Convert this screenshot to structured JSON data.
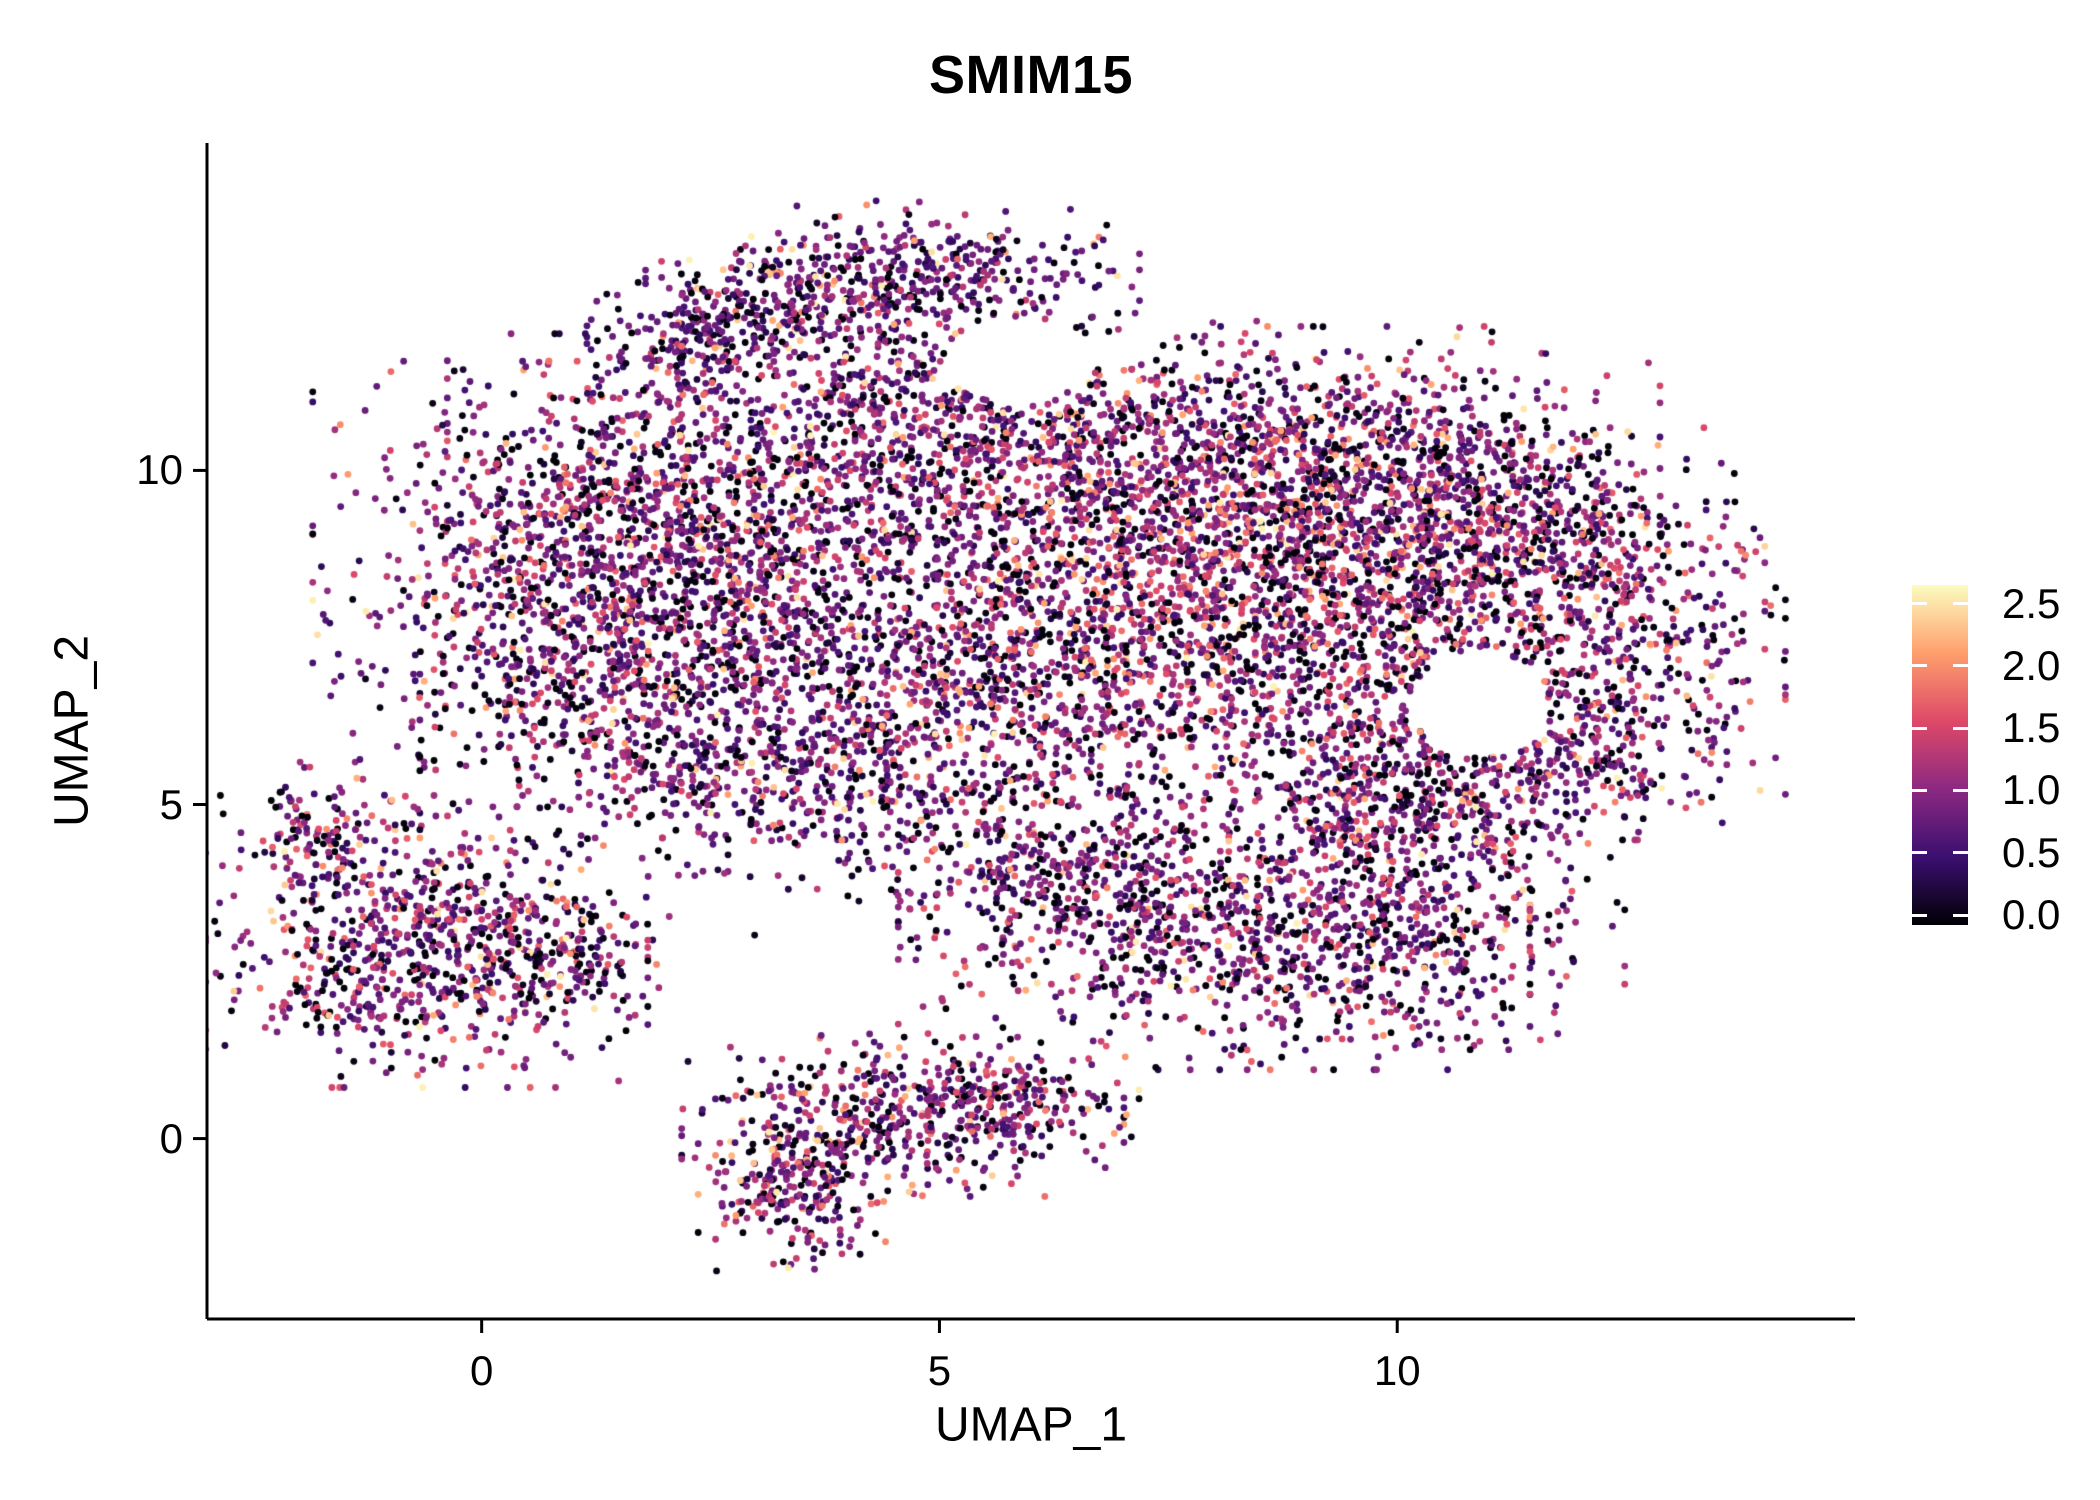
{
  "title": "SMIM15",
  "chart_data": {
    "type": "scatter",
    "title": "SMIM15",
    "subtitle": "",
    "xlabel": "UMAP_1",
    "ylabel": "UMAP_2",
    "x_ticks": [
      {
        "label": "0",
        "value": 0
      },
      {
        "label": "5",
        "value": 5
      },
      {
        "label": "10",
        "value": 10
      }
    ],
    "y_ticks": [
      {
        "label": "0",
        "value": 0
      },
      {
        "label": "5",
        "value": 5
      },
      {
        "label": "10",
        "value": 10
      }
    ],
    "xlim": [
      -3.0,
      15.0
    ],
    "ylim": [
      -2.7,
      14.9
    ],
    "grid": false,
    "background": "#ffffff",
    "axis_color": "#000000",
    "text_color": "#000000",
    "point_radius_px": 3.4,
    "seed": 42,
    "legend": {
      "position": "right",
      "title": "",
      "ticks": [
        {
          "label": "2.5",
          "value": 2.5
        },
        {
          "label": "2.0",
          "value": 2.0
        },
        {
          "label": "1.5",
          "value": 1.5
        },
        {
          "label": "1.0",
          "value": 1.0
        },
        {
          "label": "0.5",
          "value": 0.5
        },
        {
          "label": "0.0",
          "value": 0.0
        }
      ],
      "color_domain": [
        0,
        2.65
      ],
      "bar_domain": [
        -0.08,
        2.65
      ],
      "colormap_name": "magma",
      "colormap_stops": [
        {
          "frac": 0.0,
          "color": "#000004"
        },
        {
          "frac": 0.2,
          "color": "#3B0F70"
        },
        {
          "frac": 0.4,
          "color": "#8C2981"
        },
        {
          "frac": 0.6,
          "color": "#DE4968"
        },
        {
          "frac": 0.8,
          "color": "#FE9F6D"
        },
        {
          "frac": 1.0,
          "color": "#FCFDBF"
        }
      ]
    },
    "value_distribution": {
      "p_zero": 0.2,
      "p_high": 0.08,
      "base_scale": 0.95,
      "high_min": 1.7,
      "high_max": 2.6,
      "max_value": 2.6
    },
    "clusters": [
      {
        "cx": 0.8,
        "cy": 8.3,
        "sx": 1.15,
        "sy": 1.45,
        "n": 850,
        "vbias": 1.0
      },
      {
        "cx": 2.5,
        "cy": 9.4,
        "sx": 1.25,
        "sy": 1.15,
        "n": 850,
        "vbias": 1.0
      },
      {
        "cx": 2.2,
        "cy": 6.8,
        "sx": 1.25,
        "sy": 1.0,
        "n": 650,
        "vbias": 0.95
      },
      {
        "cx": 2.3,
        "cy": 12.0,
        "sx": 0.5,
        "sy": 0.4,
        "n": 150,
        "vbias": 0.85
      },
      {
        "cx": 3.4,
        "cy": 12.45,
        "sx": 0.7,
        "sy": 0.45,
        "n": 260,
        "vbias": 0.85
      },
      {
        "cx": 5.0,
        "cy": 13.0,
        "sx": 0.95,
        "sy": 0.45,
        "n": 320,
        "vbias": 0.85
      },
      {
        "cx": 4.6,
        "cy": 10.9,
        "sx": 1.05,
        "sy": 0.85,
        "n": 420,
        "vbias": 0.95
      },
      {
        "cx": 5.0,
        "cy": 8.0,
        "sx": 1.5,
        "sy": 1.5,
        "n": 900,
        "vbias": 1.0
      },
      {
        "cx": 6.5,
        "cy": 6.3,
        "sx": 1.5,
        "sy": 0.9,
        "n": 600,
        "vbias": 1.0
      },
      {
        "cx": 7.8,
        "cy": 8.7,
        "sx": 1.35,
        "sy": 1.15,
        "n": 1100,
        "vbias": 1.25
      },
      {
        "cx": 6.8,
        "cy": 10.4,
        "sx": 1.15,
        "sy": 0.85,
        "n": 480,
        "vbias": 1.0
      },
      {
        "cx": 9.3,
        "cy": 10.2,
        "sx": 1.25,
        "sy": 0.85,
        "n": 550,
        "vbias": 1.0
      },
      {
        "cx": 10.8,
        "cy": 10.0,
        "sx": 0.9,
        "sy": 0.7,
        "n": 330,
        "vbias": 1.0
      },
      {
        "cx": 9.8,
        "cy": 7.6,
        "sx": 1.2,
        "sy": 1.3,
        "n": 780,
        "vbias": 1.1
      },
      {
        "cx": 11.6,
        "cy": 8.8,
        "sx": 1.05,
        "sy": 0.8,
        "n": 480,
        "vbias": 1.0
      },
      {
        "cx": 12.4,
        "cy": 7.0,
        "sx": 0.8,
        "sy": 1.1,
        "n": 430,
        "vbias": 1.0
      },
      {
        "cx": 11.3,
        "cy": 5.6,
        "sx": 1.0,
        "sy": 0.6,
        "n": 280,
        "vbias": 0.95
      },
      {
        "cx": -0.6,
        "cy": 2.95,
        "sx": 1.05,
        "sy": 0.95,
        "n": 800,
        "vbias": 1.0
      },
      {
        "cx": -1.75,
        "cy": 4.6,
        "sx": 0.35,
        "sy": 0.45,
        "n": 110,
        "vbias": 1.0
      },
      {
        "cx": 0.9,
        "cy": 2.55,
        "sx": 0.45,
        "sy": 0.45,
        "n": 120,
        "vbias": 1.0
      },
      {
        "cx": 4.6,
        "cy": 0.4,
        "sx": 1.05,
        "sy": 0.55,
        "n": 420,
        "vbias": 1.0
      },
      {
        "cx": 3.4,
        "cy": -0.6,
        "sx": 0.45,
        "sy": 0.6,
        "n": 270,
        "vbias": 1.0
      },
      {
        "cx": 5.8,
        "cy": 0.6,
        "sx": 0.6,
        "sy": 0.4,
        "n": 120,
        "vbias": 0.95
      },
      {
        "cx": 8.0,
        "cy": 3.1,
        "sx": 1.5,
        "sy": 0.9,
        "n": 800,
        "vbias": 1.0
      },
      {
        "cx": 6.3,
        "cy": 3.9,
        "sx": 1.0,
        "sy": 0.5,
        "n": 240,
        "vbias": 0.95
      },
      {
        "cx": 10.3,
        "cy": 3.4,
        "sx": 0.95,
        "sy": 0.9,
        "n": 430,
        "vbias": 1.0
      },
      {
        "cx": 10.0,
        "cy": 5.0,
        "sx": 0.8,
        "sy": 0.5,
        "n": 240,
        "vbias": 1.0
      },
      {
        "cx": 3.5,
        "cy": 5.3,
        "sx": 1.3,
        "sy": 0.6,
        "n": 240,
        "vbias": 0.9
      },
      {
        "cx": 4.5,
        "cy": 4.4,
        "sx": 1.6,
        "sy": 0.7,
        "n": 130,
        "vbias": 0.85
      }
    ],
    "exclusions": [
      {
        "cx": 10.9,
        "cy": 6.5,
        "rx": 0.75,
        "ry": 0.8
      },
      {
        "cx": 5.85,
        "cy": 11.65,
        "rx": 0.8,
        "ry": 0.65
      }
    ]
  }
}
